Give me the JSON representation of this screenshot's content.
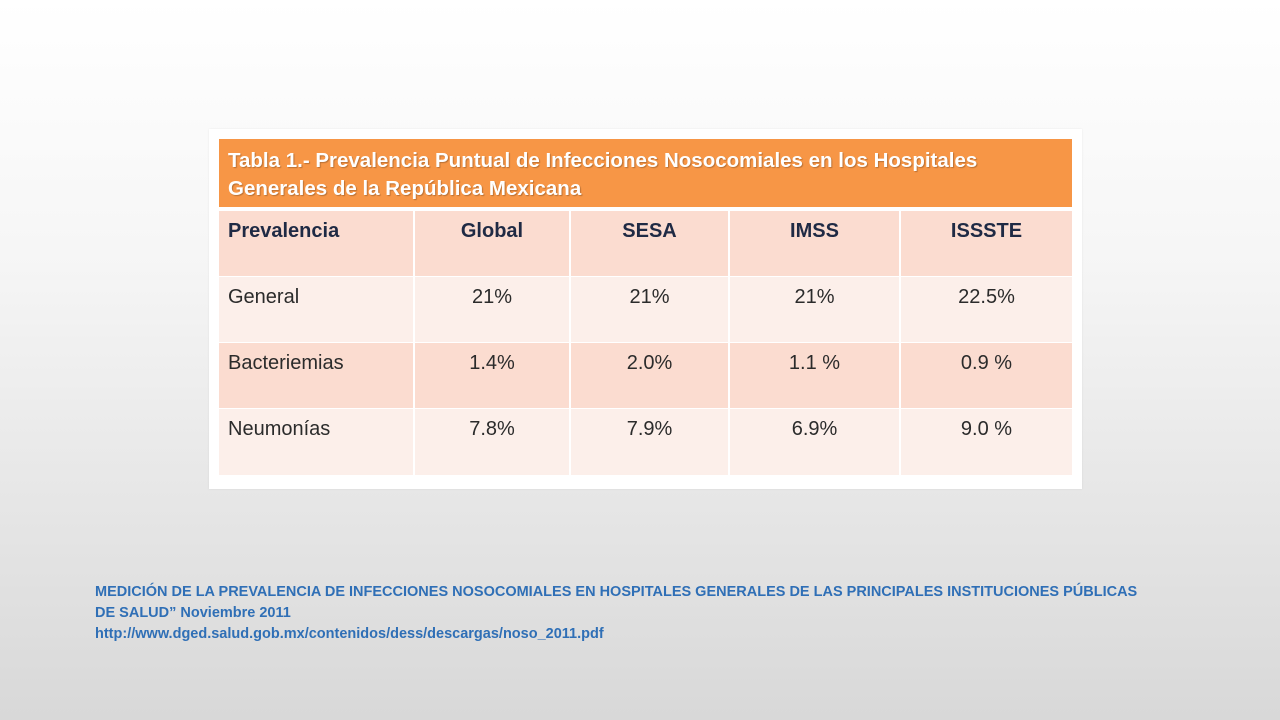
{
  "table": {
    "title_line1": "Tabla 1.- Prevalencia Puntual de Infecciones Nosocomiales en los Hospitales",
    "title_line2": "Generales de la República Mexicana",
    "headers": [
      "Prevalencia",
      "Global",
      "SESA",
      "IMSS",
      "ISSSTE"
    ],
    "rows": [
      [
        "General",
        "21%",
        "21%",
        "21%",
        "22.5%"
      ],
      [
        "Bacteriemias",
        "1.4%",
        "2.0%",
        "1.1 %",
        "0.9 %"
      ],
      [
        "Neumonías",
        "7.8%",
        "7.9%",
        "6.9%",
        "9.0 %"
      ]
    ]
  },
  "source": {
    "line1": "MEDICIÓN DE LA PREVALENCIA DE INFECCIONES NOSOCOMIALES EN HOSPITALES GENERALES DE LAS PRINCIPALES INSTITUCIONES PÚBLICAS",
    "line2": "DE SALUD” Noviembre 2011",
    "url": "http://www.dged.salud.gob.mx/contenidos/dess/descargas/noso_2011.pdf"
  },
  "colors": {
    "title_bg": "#f79646",
    "row_dark": "#fbdcd0",
    "row_light": "#fcefea",
    "source_text": "#2f6fb6"
  }
}
